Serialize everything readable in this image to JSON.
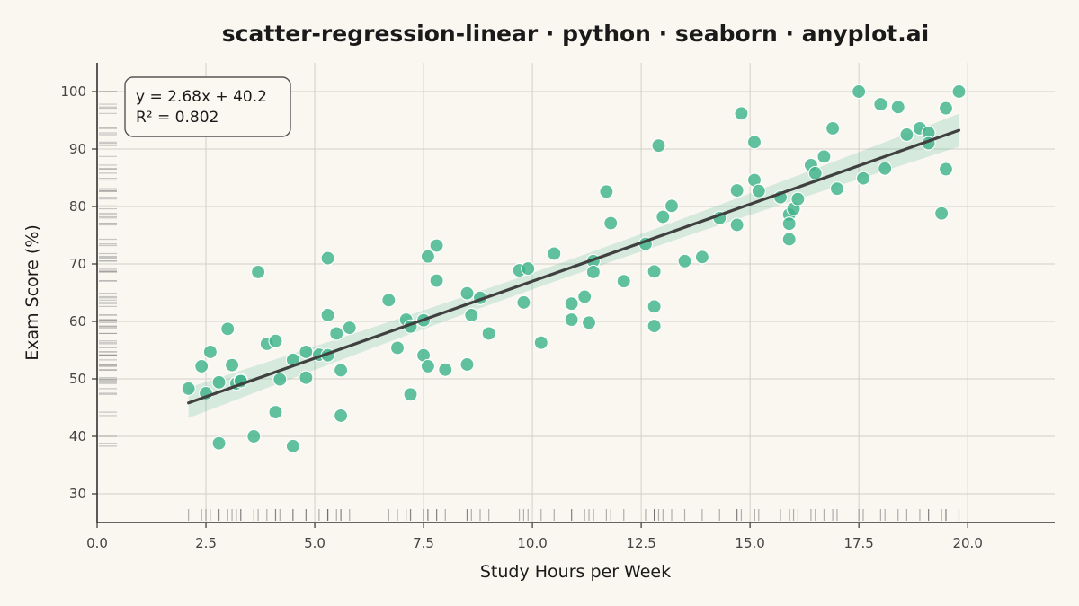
{
  "chart_data": {
    "type": "scatter",
    "title": "scatter-regression-linear · python · seaborn · anyplot.ai",
    "xlabel": "Study Hours per Week",
    "ylabel": "Exam Score (%)",
    "xlim": [
      0,
      22
    ],
    "ylim": [
      25,
      105
    ],
    "xticks": [
      0,
      2.5,
      5,
      7.5,
      10,
      12.5,
      15,
      17.5,
      20
    ],
    "xtick_labels": [
      "0.0",
      "2.5",
      "5.0",
      "7.5",
      "10.0",
      "12.5",
      "15.0",
      "17.5",
      "20.0"
    ],
    "yticks": [
      30,
      40,
      50,
      60,
      70,
      80,
      90,
      100
    ],
    "ytick_labels": [
      "30",
      "40",
      "50",
      "60",
      "70",
      "80",
      "90",
      "100"
    ],
    "grid": true,
    "rug": true,
    "point_color": "#3fb38a",
    "line_color": "#404040",
    "band_color": "#3fb38a",
    "annotation": {
      "equation": "y = 2.68x + 40.2",
      "r_squared": "R² = 0.802",
      "position": "top-left"
    },
    "regression": {
      "slope": 2.68,
      "intercept": 40.2,
      "x_range": [
        2.1,
        19.8
      ]
    },
    "points": [
      [
        2.1,
        48.3
      ],
      [
        2.4,
        52.2
      ],
      [
        2.5,
        47.5
      ],
      [
        2.6,
        54.7
      ],
      [
        2.8,
        49.4
      ],
      [
        2.8,
        38.8
      ],
      [
        3.0,
        58.7
      ],
      [
        3.1,
        52.4
      ],
      [
        3.2,
        49.2
      ],
      [
        3.3,
        49.8
      ],
      [
        3.3,
        49.6
      ],
      [
        3.6,
        40.0
      ],
      [
        3.7,
        68.6
      ],
      [
        3.9,
        56.1
      ],
      [
        4.1,
        44.2
      ],
      [
        4.1,
        56.6
      ],
      [
        4.2,
        49.9
      ],
      [
        4.5,
        53.3
      ],
      [
        4.5,
        38.3
      ],
      [
        4.8,
        54.7
      ],
      [
        4.8,
        50.2
      ],
      [
        5.1,
        54.2
      ],
      [
        5.3,
        54.1
      ],
      [
        5.3,
        61.1
      ],
      [
        5.3,
        71.0
      ],
      [
        5.5,
        57.9
      ],
      [
        5.6,
        51.5
      ],
      [
        5.6,
        43.6
      ],
      [
        5.8,
        58.9
      ],
      [
        6.7,
        63.7
      ],
      [
        6.9,
        55.4
      ],
      [
        7.1,
        60.3
      ],
      [
        7.2,
        59.1
      ],
      [
        7.2,
        47.3
      ],
      [
        7.5,
        60.2
      ],
      [
        7.5,
        54.1
      ],
      [
        7.6,
        52.2
      ],
      [
        7.6,
        71.3
      ],
      [
        7.8,
        67.1
      ],
      [
        7.8,
        73.2
      ],
      [
        8.0,
        51.6
      ],
      [
        8.5,
        52.5
      ],
      [
        8.5,
        64.9
      ],
      [
        8.6,
        61.1
      ],
      [
        8.8,
        64.1
      ],
      [
        9.0,
        57.9
      ],
      [
        9.7,
        68.9
      ],
      [
        9.8,
        63.3
      ],
      [
        9.9,
        69.2
      ],
      [
        10.2,
        56.3
      ],
      [
        10.5,
        71.8
      ],
      [
        10.9,
        63.1
      ],
      [
        10.9,
        60.3
      ],
      [
        11.2,
        64.3
      ],
      [
        11.3,
        59.8
      ],
      [
        11.4,
        70.5
      ],
      [
        11.4,
        68.6
      ],
      [
        11.7,
        82.6
      ],
      [
        11.8,
        77.1
      ],
      [
        12.1,
        67.0
      ],
      [
        12.6,
        73.5
      ],
      [
        12.8,
        62.6
      ],
      [
        12.8,
        59.2
      ],
      [
        12.8,
        68.7
      ],
      [
        12.9,
        90.6
      ],
      [
        13.0,
        78.2
      ],
      [
        13.2,
        80.1
      ],
      [
        13.5,
        70.5
      ],
      [
        13.9,
        71.2
      ],
      [
        14.3,
        78.0
      ],
      [
        14.7,
        82.8
      ],
      [
        14.7,
        76.8
      ],
      [
        14.8,
        96.2
      ],
      [
        15.1,
        84.6
      ],
      [
        15.1,
        91.2
      ],
      [
        15.2,
        82.7
      ],
      [
        15.7,
        81.6
      ],
      [
        15.9,
        78.6
      ],
      [
        15.9,
        74.3
      ],
      [
        15.9,
        77.0
      ],
      [
        16.0,
        79.6
      ],
      [
        16.1,
        81.3
      ],
      [
        16.4,
        87.2
      ],
      [
        16.5,
        85.8
      ],
      [
        16.7,
        88.7
      ],
      [
        16.9,
        93.6
      ],
      [
        17.0,
        83.1
      ],
      [
        17.5,
        100.0
      ],
      [
        17.6,
        84.9
      ],
      [
        18.0,
        97.8
      ],
      [
        18.1,
        86.6
      ],
      [
        18.4,
        97.3
      ],
      [
        18.6,
        92.5
      ],
      [
        18.9,
        93.6
      ],
      [
        19.1,
        92.8
      ],
      [
        19.1,
        91.0
      ],
      [
        19.4,
        78.8
      ],
      [
        19.5,
        86.5
      ],
      [
        19.5,
        97.1
      ],
      [
        19.8,
        100.0
      ]
    ]
  }
}
